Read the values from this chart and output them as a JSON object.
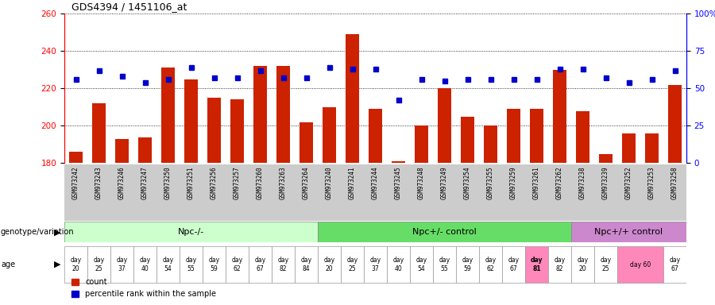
{
  "title": "GDS4394 / 1451106_at",
  "samples": [
    "GSM973242",
    "GSM973243",
    "GSM973246",
    "GSM973247",
    "GSM973250",
    "GSM973251",
    "GSM973256",
    "GSM973257",
    "GSM973260",
    "GSM973263",
    "GSM973264",
    "GSM973240",
    "GSM973241",
    "GSM973244",
    "GSM973245",
    "GSM973248",
    "GSM973249",
    "GSM973254",
    "GSM973255",
    "GSM973259",
    "GSM973261",
    "GSM973262",
    "GSM973238",
    "GSM973239",
    "GSM973252",
    "GSM973253",
    "GSM973258"
  ],
  "counts": [
    186,
    212,
    193,
    194,
    231,
    225,
    215,
    214,
    232,
    232,
    202,
    210,
    249,
    209,
    181,
    200,
    220,
    205,
    200,
    209,
    209,
    230,
    208,
    185,
    196,
    196,
    222
  ],
  "percentile_ranks": [
    56,
    62,
    58,
    54,
    56,
    64,
    57,
    57,
    62,
    57,
    57,
    64,
    63,
    63,
    42,
    56,
    55,
    56,
    56,
    56,
    56,
    63,
    63,
    57,
    54,
    56,
    62
  ],
  "groups": [
    {
      "label": "Npc-/-",
      "start": 0,
      "end": 11,
      "color": "#ccffcc"
    },
    {
      "label": "Npc+/- control",
      "start": 11,
      "end": 22,
      "color": "#66dd66"
    },
    {
      "label": "Npc+/+ control",
      "start": 22,
      "end": 27,
      "color": "#cc88cc"
    }
  ],
  "age_data": [
    [
      0,
      1,
      "day\n20",
      false
    ],
    [
      1,
      1,
      "day\n25",
      false
    ],
    [
      2,
      1,
      "day\n37",
      false
    ],
    [
      3,
      1,
      "day\n40",
      false
    ],
    [
      4,
      1,
      "day\n54",
      false
    ],
    [
      5,
      1,
      "day\n55",
      false
    ],
    [
      6,
      1,
      "day\n59",
      false
    ],
    [
      7,
      1,
      "day\n62",
      false
    ],
    [
      8,
      1,
      "day\n67",
      false
    ],
    [
      9,
      1,
      "day\n82",
      false
    ],
    [
      10,
      1,
      "day\n84",
      false
    ],
    [
      11,
      1,
      "day\n20",
      false
    ],
    [
      12,
      1,
      "day\n25",
      false
    ],
    [
      13,
      1,
      "day\n37",
      false
    ],
    [
      14,
      1,
      "day\n40",
      false
    ],
    [
      15,
      1,
      "day\n54",
      false
    ],
    [
      16,
      1,
      "day\n55",
      false
    ],
    [
      17,
      1,
      "day\n59",
      false
    ],
    [
      18,
      1,
      "day\n62",
      false
    ],
    [
      19,
      1,
      "day\n67",
      false
    ],
    [
      20,
      1,
      "day\n81",
      true
    ],
    [
      21,
      1,
      "day\n82",
      false
    ],
    [
      22,
      1,
      "day\n20",
      false
    ],
    [
      23,
      1,
      "day\n25",
      false
    ],
    [
      24,
      2,
      "day 60",
      false
    ],
    [
      26,
      1,
      "day\n67",
      false
    ]
  ],
  "ylim_left": [
    180,
    260
  ],
  "ylim_right": [
    0,
    100
  ],
  "yticks_left": [
    180,
    200,
    220,
    240,
    260
  ],
  "yticks_right": [
    0,
    25,
    50,
    75,
    100
  ],
  "bar_color": "#cc2200",
  "dot_color": "#0000cc",
  "bar_bottom": 180,
  "xlab_bg": "#cccccc"
}
